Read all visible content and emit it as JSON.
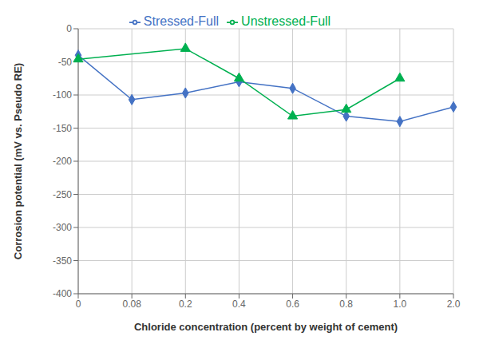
{
  "chart_data": {
    "type": "line",
    "xlabel": "Chloride concentration (percent by weight of cement)",
    "ylabel": "Corrosion potential (mV vs. Pseudo RE)",
    "categories": [
      "0",
      "0.08",
      "0.2",
      "0.4",
      "0.6",
      "0.8",
      "1.0",
      "2.0"
    ],
    "series": [
      {
        "name": "Stressed-Full",
        "color": "#4472C4",
        "marker": "diamond",
        "values": [
          -40,
          -107,
          -97,
          -80,
          -90,
          -132,
          -140,
          -118
        ]
      },
      {
        "name": "Unstressed-Full",
        "color": "#00B050",
        "marker": "triangle",
        "values": [
          -46,
          null,
          -30,
          -75,
          -132,
          -122,
          -75,
          null
        ]
      }
    ],
    "ylim": [
      -400,
      0
    ],
    "yticks": [
      0,
      -50,
      -100,
      -150,
      -200,
      -250,
      -300,
      -350,
      -400
    ],
    "grid": true,
    "legend": "top"
  }
}
